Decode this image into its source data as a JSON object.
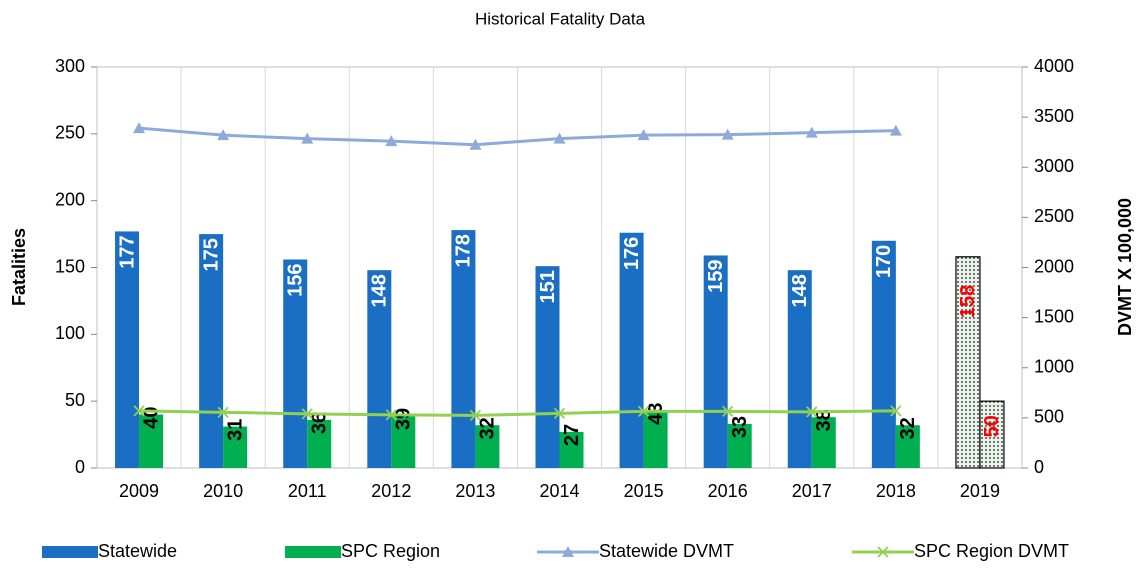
{
  "chart_data": {
    "type": "bar",
    "title": "Historical Fatality Data",
    "ylabel": "Fatalities",
    "y2label": "DVMT X 100,000",
    "categories": [
      "2009",
      "2010",
      "2011",
      "2012",
      "2013",
      "2014",
      "2015",
      "2016",
      "2017",
      "2018",
      "2019"
    ],
    "series": [
      {
        "name": "Statewide",
        "color": "#1a6fc4",
        "label_color": "#ffffff",
        "values": [
          177,
          175,
          156,
          148,
          178,
          151,
          176,
          159,
          148,
          170,
          158
        ]
      },
      {
        "name": "SPC Region",
        "color": "#00b050",
        "label_color": "#000000",
        "values": [
          40,
          31,
          36,
          39,
          32,
          27,
          43,
          33,
          38,
          32,
          50
        ]
      },
      {
        "name": "Statewide DVMT",
        "type": "line",
        "marker": "triangle",
        "axis": "y2",
        "color": "#8eaadb",
        "values": [
          3390,
          3320,
          3285,
          3260,
          3225,
          3285,
          3320,
          3325,
          3345,
          3365,
          null
        ]
      },
      {
        "name": "SPC Region DVMT",
        "type": "line",
        "marker": "x",
        "axis": "y2",
        "color": "#92d050",
        "values": [
          570,
          555,
          540,
          530,
          525,
          545,
          565,
          565,
          560,
          570,
          null
        ]
      }
    ],
    "hatched_categories": [
      "2019"
    ],
    "hatched_label_color": "#ff0000",
    "ylim": [
      0,
      300
    ],
    "yticks": [
      0,
      50,
      100,
      150,
      200,
      250,
      300
    ],
    "y2lim": [
      0,
      4000
    ],
    "y2ticks": [
      0,
      500,
      1000,
      1500,
      2000,
      2500,
      3000,
      3500,
      4000
    ],
    "grid": "x",
    "legend": "bottom"
  }
}
